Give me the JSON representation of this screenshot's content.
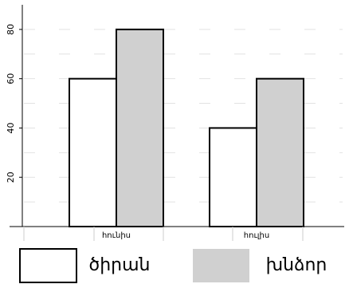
{
  "chart_data": {
    "type": "bar",
    "title": "",
    "xlabel": "",
    "ylabel": "",
    "categories": [
      "հունիս",
      "հուլիս"
    ],
    "series": [
      {
        "name": "ծիրան",
        "values": [
          60,
          40
        ],
        "color": "#ffffff"
      },
      {
        "name": "խնձոր",
        "values": [
          80,
          60
        ],
        "color": "#d0d0d0"
      }
    ],
    "ylim": [
      0,
      90
    ],
    "yticks": [
      20,
      40,
      60,
      80
    ],
    "legend_position": "bottom",
    "grid": "dashed-horizontal",
    "stroke_color": "#000000"
  }
}
